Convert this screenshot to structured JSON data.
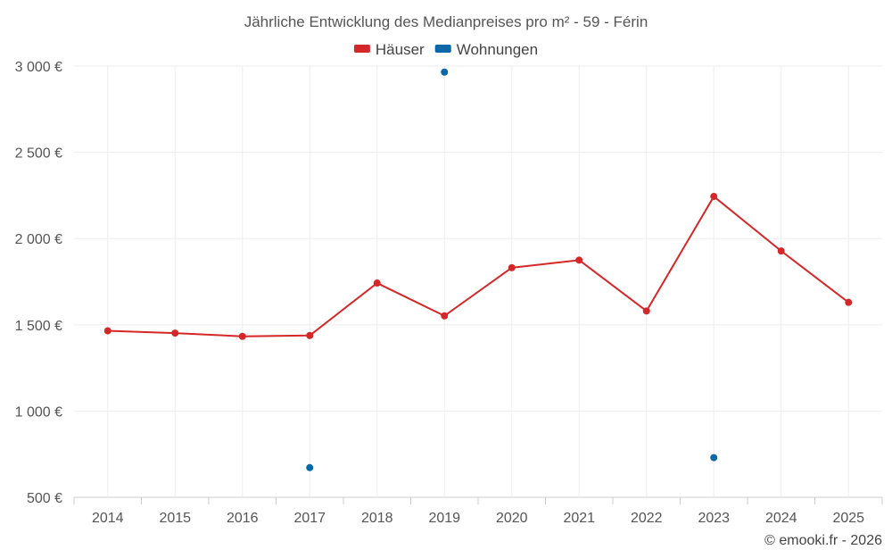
{
  "chart_data": {
    "type": "line",
    "title": "Jährliche Entwicklung des Medianpreises pro m² - 59 - Férin",
    "categories": [
      "2014",
      "2015",
      "2016",
      "2017",
      "2018",
      "2019",
      "2020",
      "2021",
      "2022",
      "2023",
      "2024",
      "2025"
    ],
    "y_ticks": [
      "500 €",
      "1 000 €",
      "1 500 €",
      "2 000 €",
      "2 500 €",
      "3 000 €"
    ],
    "ylim": [
      500,
      3000
    ],
    "grid": true,
    "legend_position": "top-center",
    "series": [
      {
        "name": "Häuser",
        "color": "#d62728",
        "connected": true,
        "values": [
          1465,
          1452,
          1433,
          1438,
          1742,
          1552,
          1831,
          1875,
          1580,
          2244,
          1928,
          1630
        ]
      },
      {
        "name": "Wohnungen",
        "color": "#0868a8",
        "connected": false,
        "values": [
          null,
          null,
          null,
          672,
          null,
          2965,
          null,
          null,
          null,
          730,
          null,
          null
        ]
      }
    ]
  },
  "copyright": "© emooki.fr - 2026"
}
